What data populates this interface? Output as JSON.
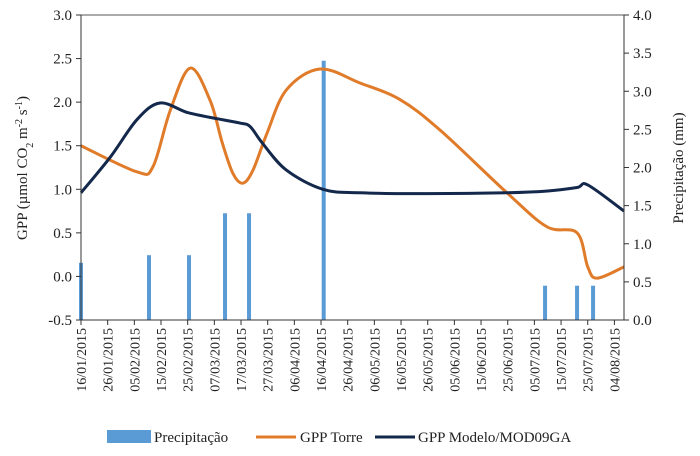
{
  "chart_data": {
    "type": "line",
    "title": "",
    "xlabel": "",
    "ylabel_parts": [
      "GPP (µmol CO",
      "2",
      " m",
      "-2",
      " s",
      "-1",
      ")"
    ],
    "ylabel": "GPP (µmol CO2 m-2 s-1)",
    "y2label": "Precipitação (mm)",
    "x_unit": "days since 16/01/2015",
    "xlim": [
      0,
      203.6
    ],
    "ylim": [
      -0.5,
      3.0
    ],
    "y2lim": [
      0.0,
      4.0
    ],
    "yticks": [
      "-0.5",
      "0.0",
      "0.5",
      "1.0",
      "1.5",
      "2.0",
      "2.5",
      "3.0"
    ],
    "y2ticks": [
      "0.0",
      "0.5",
      "1.0",
      "1.5",
      "2.0",
      "2.5",
      "3.0",
      "3.5",
      "4.0"
    ],
    "xticks": [
      "16/01/2015",
      "26/01/2015",
      "05/02/2015",
      "15/02/2015",
      "25/02/2015",
      "07/03/2015",
      "17/03/2015",
      "27/03/2015",
      "06/04/2015",
      "16/04/2015",
      "26/04/2015",
      "06/05/2015",
      "16/05/2015",
      "26/05/2015",
      "05/06/2015",
      "15/06/2015",
      "25/06/2015",
      "05/07/2015",
      "15/07/2015",
      "25/07/2015",
      "04/08/2015"
    ],
    "legend_position": "bottom",
    "grid": false,
    "series": [
      {
        "name": "Precipitação",
        "type": "bar",
        "axis": "right",
        "color": "#5b9bd5",
        "x": [
          0,
          25.5,
          40.5,
          54,
          63,
          91,
          174,
          186,
          192
        ],
        "values": [
          0.75,
          0.85,
          0.85,
          1.4,
          1.4,
          3.4,
          0.45,
          0.45,
          0.45
        ]
      },
      {
        "name": "GPP Torre",
        "type": "line",
        "axis": "left",
        "color": "#e07b2a",
        "x": [
          0,
          21,
          27,
          33.4,
          40.9,
          48.4,
          53,
          57,
          60.7,
          64.5,
          69.7,
          77,
          89.6,
          104.6,
          119.6,
          134.6,
          159.7,
          174.7,
          186,
          190,
          193.5,
          203.6
        ],
        "values": [
          1.5,
          1.2,
          1.26,
          1.9,
          2.39,
          2.02,
          1.53,
          1.18,
          1.07,
          1.22,
          1.64,
          2.14,
          2.38,
          2.22,
          2.03,
          1.68,
          0.96,
          0.57,
          0.5,
          0.11,
          -0.02,
          0.11
        ]
      },
      {
        "name": "GPP Modelo/MOD09GA",
        "type": "line",
        "axis": "left",
        "color": "#13284b",
        "x": [
          0,
          11,
          21,
          29.6,
          40,
          51,
          59.6,
          63.4,
          68,
          77,
          90.7,
          104.6,
          130,
          160,
          175,
          186,
          190,
          203.6
        ],
        "values": [
          0.96,
          1.37,
          1.8,
          1.99,
          1.88,
          1.81,
          1.76,
          1.72,
          1.53,
          1.22,
          1.0,
          0.96,
          0.95,
          0.96,
          0.98,
          1.02,
          1.05,
          0.75
        ]
      }
    ]
  }
}
